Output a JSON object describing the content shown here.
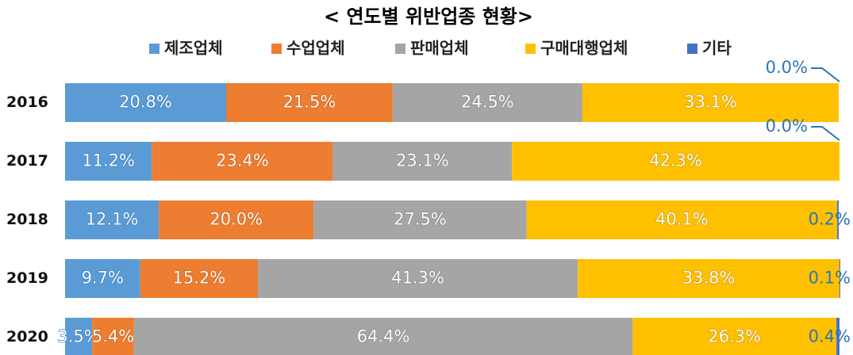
{
  "chart_data": {
    "type": "bar",
    "orientation": "horizontal",
    "stacked": true,
    "title": "< 연도별 위반업종 현황>",
    "categories": [
      "2016",
      "2017",
      "2018",
      "2019",
      "2020"
    ],
    "xlim": [
      0,
      100
    ],
    "legend": "top",
    "series": [
      {
        "name": "제조업체",
        "color": "#5b9bd5",
        "values": [
          20.8,
          11.2,
          12.1,
          9.7,
          3.5
        ],
        "value_labels": [
          "20.8%",
          "11.2%",
          "12.1%",
          "9.7%",
          "3.5%"
        ]
      },
      {
        "name": "수업업체",
        "color": "#ed7d31",
        "values": [
          21.5,
          23.4,
          20.0,
          15.2,
          5.4
        ],
        "value_labels": [
          "21.5%",
          "23.4%",
          "20.0%",
          "15.2%",
          "5.4%"
        ]
      },
      {
        "name": "판매업체",
        "color": "#a5a5a5",
        "values": [
          24.5,
          23.1,
          27.5,
          41.3,
          64.4
        ],
        "value_labels": [
          "24.5%",
          "23.1%",
          "27.5%",
          "41.3%",
          "64.4%"
        ]
      },
      {
        "name": "구매대행업체",
        "color": "#ffc000",
        "values": [
          33.1,
          42.3,
          40.1,
          33.8,
          26.3
        ],
        "value_labels": [
          "33.1%",
          "42.3%",
          "40.1%",
          "33.8%",
          "26.3%"
        ]
      },
      {
        "name": "기타",
        "color": "#4472c4",
        "values": [
          0.0,
          0.0,
          0.2,
          0.1,
          0.4
        ],
        "value_labels": [
          "0.0%",
          "0.0%",
          "0.2%",
          "0.1%",
          "0.4%"
        ]
      }
    ]
  }
}
